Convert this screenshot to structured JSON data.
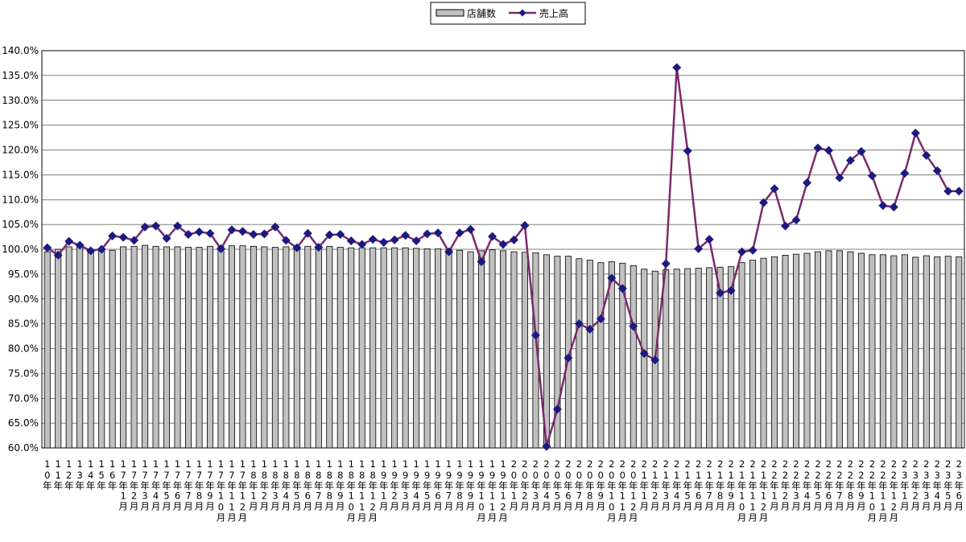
{
  "chart_data": {
    "type": "bar-line",
    "categories": [
      "10年",
      "11年",
      "12年",
      "13年",
      "14年",
      "15年",
      "16年",
      "17年1月",
      "17年2月",
      "17年3月",
      "17年4月",
      "17年5月",
      "17年6月",
      "17年7月",
      "17年8月",
      "17年9月",
      "17年10月",
      "17年11月",
      "17年12月",
      "18年1月",
      "18年2月",
      "18年3月",
      "18年4月",
      "18年5月",
      "18年6月",
      "18年7月",
      "18年8月",
      "18年9月",
      "18年10月",
      "18年11月",
      "18年12月",
      "19年1月",
      "19年2月",
      "19年3月",
      "19年4月",
      "19年5月",
      "19年6月",
      "19年7月",
      "19年8月",
      "19年9月",
      "19年10月",
      "19年11月",
      "19年12月",
      "20年1月",
      "20年2月",
      "20年3月",
      "20年4月",
      "20年5月",
      "20年6月",
      "20年7月",
      "20年8月",
      "20年9月",
      "20年10月",
      "20年11月",
      "20年12月",
      "21年1月",
      "21年2月",
      "21年3月",
      "21年4月",
      "21年5月",
      "21年6月",
      "21年7月",
      "21年8月",
      "21年9月",
      "21年10月",
      "21年11月",
      "21年12月",
      "22年1月",
      "22年2月",
      "22年3月",
      "22年4月",
      "22年5月",
      "22年6月",
      "22年7月",
      "22年8月",
      "22年9月",
      "22年10月",
      "22年11月",
      "22年12月",
      "23年1月",
      "23年2月",
      "23年3月",
      "23年4月",
      "23年5月",
      "23年6月"
    ],
    "series": [
      {
        "name": "店舗数",
        "kind": "bar",
        "color": "#c0c0c0",
        "values": [
          99.5,
          100,
          100.5,
          100.5,
          100,
          99.8,
          99.8,
          100.5,
          100.6,
          100.8,
          100.6,
          100.5,
          100.5,
          100.4,
          100.4,
          100.6,
          100.5,
          100.7,
          100.7,
          100.6,
          100.5,
          100.4,
          100.5,
          100.5,
          100.6,
          100.6,
          100.6,
          100.4,
          100.3,
          100.3,
          100.3,
          100.3,
          100.3,
          100.3,
          100.2,
          100.1,
          100.1,
          99.9,
          99.8,
          99.5,
          99.7,
          99.9,
          99.7,
          99.5,
          99.4,
          99.3,
          98.9,
          98.6,
          98.6,
          98.1,
          97.8,
          97.3,
          97.5,
          97.2,
          96.7,
          96.0,
          95.6,
          95.9,
          96.0,
          96.1,
          96.2,
          96.3,
          96.4,
          96.5,
          97.3,
          97.8,
          98.2,
          98.5,
          98.8,
          99.0,
          99.2,
          99.5,
          99.7,
          99.7,
          99.5,
          99.2,
          98.9,
          98.9,
          98.7,
          98.9,
          98.4,
          98.7,
          98.5,
          98.6,
          98.5
        ]
      },
      {
        "name": "売上高",
        "kind": "line",
        "color": "#7b2a6b",
        "marker_color": "#1a1a80",
        "values": [
          100.3,
          98.8,
          101.6,
          100.8,
          99.7,
          100.0,
          102.7,
          102.4,
          101.8,
          104.5,
          104.7,
          102.2,
          104.7,
          103.0,
          103.5,
          103.2,
          100.1,
          103.9,
          103.6,
          103.0,
          103.1,
          104.5,
          101.8,
          100.3,
          103.2,
          100.4,
          102.9,
          103.0,
          101.7,
          101.0,
          102.0,
          101.4,
          101.9,
          102.8,
          101.7,
          103.1,
          103.3,
          99.5,
          103.3,
          104.0,
          97.5,
          102.6,
          101.0,
          101.9,
          104.8,
          82.7,
          60.3,
          67.8,
          78.1,
          85.0,
          83.9,
          86.0,
          94.2,
          92.1,
          84.5,
          79.0,
          77.7,
          97.1,
          136.6,
          119.8,
          100.1,
          102.0,
          91.2,
          91.7,
          99.5,
          99.8,
          109.4,
          112.2,
          104.7,
          105.9,
          113.4,
          120.4,
          119.9,
          114.4,
          117.9,
          119.7,
          114.8,
          108.8,
          108.5,
          115.3,
          123.4,
          118.9,
          115.8,
          111.7,
          111.7
        ]
      }
    ],
    "ylim": [
      60,
      140
    ],
    "yticks": [
      {
        "value": 60,
        "label": "60.0%"
      },
      {
        "value": 65,
        "label": "65.0%"
      },
      {
        "value": 70,
        "label": "70.0%"
      },
      {
        "value": 75,
        "label": "75.0%"
      },
      {
        "value": 80,
        "label": "80.0%"
      },
      {
        "value": 85,
        "label": "85.0%"
      },
      {
        "value": 90,
        "label": "90.0%"
      },
      {
        "value": 95,
        "label": "95.0%"
      },
      {
        "value": 100,
        "label": "100.0%"
      },
      {
        "value": 105,
        "label": "105.0%"
      },
      {
        "value": 110,
        "label": "110.0%"
      },
      {
        "value": 115,
        "label": "115.0%"
      },
      {
        "value": 120,
        "label": "120.0%"
      },
      {
        "value": 125,
        "label": "125.0%"
      },
      {
        "value": 130,
        "label": "130.0%"
      },
      {
        "value": 135,
        "label": "135.0%"
      },
      {
        "value": 140,
        "label": "140.0%"
      }
    ],
    "grid": true,
    "legend": "top"
  }
}
